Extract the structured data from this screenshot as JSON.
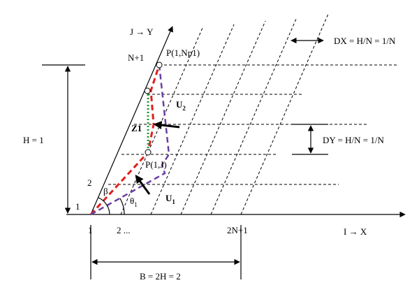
{
  "axes": {
    "y_axis": "J → Y",
    "x_axis": "I → X"
  },
  "labels": {
    "n_plus_1": "N+1",
    "p_top": "P(1,Np1)",
    "dx": "DX = H/N = 1/N",
    "h": "H = 1",
    "u2": {
      "base": "U",
      "sub": "2"
    },
    "z1": "Z1",
    "dy": "DY = H/N = 1/N",
    "p_j": "P(1,J)",
    "row2": "2",
    "beta": "β",
    "theta1": {
      "base": "θ",
      "sub": "1"
    },
    "u1": {
      "base": "U",
      "sub": "1"
    },
    "row1": "1",
    "col1": "1",
    "col2": "2 ...",
    "col_last": "2N+1",
    "b": "B = 2H = 2"
  }
}
